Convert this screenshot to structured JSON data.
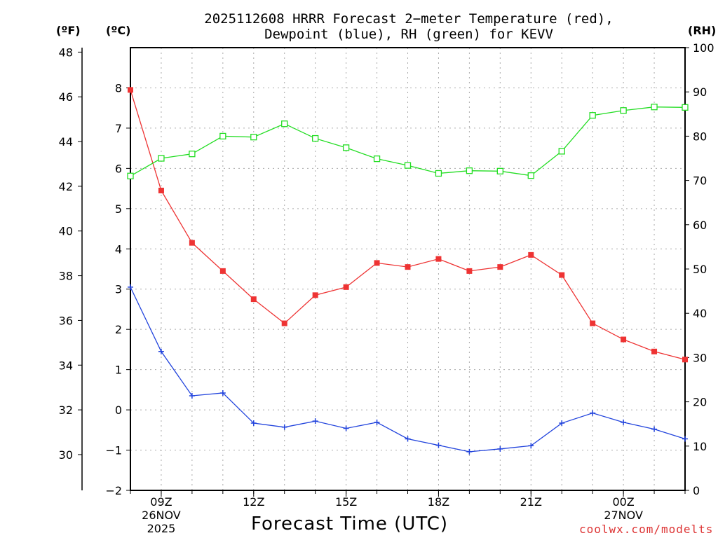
{
  "title_line1": "2025112608 HRRR Forecast 2−meter Temperature (red),",
  "title_line2": "Dewpoint (blue), RH (green) for KEVV",
  "units": {
    "f": "(ºF)",
    "c": "(ºC)",
    "rh": "(RH)"
  },
  "credit": "coolwx.com/modelts",
  "colors": {
    "temperature": "#ee3333",
    "dewpoint": "#2244dd",
    "rh": "#22dd22",
    "grid": "#aaaaaa"
  },
  "chart_data": {
    "type": "line",
    "title": "2025112608 HRRR Forecast 2-meter Temperature (red), Dewpoint (blue), RH (green) for KEVV",
    "xlabel": "Forecast Time (UTC)",
    "x_hours": [
      8,
      9,
      10,
      11,
      12,
      13,
      14,
      15,
      16,
      17,
      18,
      19,
      20,
      21,
      22,
      23,
      24,
      25,
      26
    ],
    "x_range": [
      8,
      26
    ],
    "x_ticks": [
      {
        "hour": 9,
        "label": "09Z",
        "sub1": "26NOV",
        "sub2": "2025"
      },
      {
        "hour": 12,
        "label": "12Z",
        "sub1": "",
        "sub2": ""
      },
      {
        "hour": 15,
        "label": "15Z",
        "sub1": "",
        "sub2": ""
      },
      {
        "hour": 18,
        "label": "18Z",
        "sub1": "",
        "sub2": ""
      },
      {
        "hour": 21,
        "label": "21Z",
        "sub1": "",
        "sub2": ""
      },
      {
        "hour": 24,
        "label": "00Z",
        "sub1": "27NOV",
        "sub2": ""
      }
    ],
    "y_celsius_range": [
      -2,
      9
    ],
    "y_celsius_ticks": [
      "−2",
      "−1",
      "0",
      "1",
      "2",
      "3",
      "4",
      "5",
      "6",
      "7",
      "8"
    ],
    "y_fahrenheit_ticks": [
      "30",
      "32",
      "34",
      "36",
      "38",
      "40",
      "42",
      "44",
      "46",
      "48"
    ],
    "y_rh_range": [
      0,
      100
    ],
    "y_rh_ticks": [
      "0",
      "10",
      "20",
      "30",
      "40",
      "50",
      "60",
      "70",
      "80",
      "90",
      "100"
    ],
    "series": [
      {
        "name": "Temperature",
        "units": "C",
        "color": "#ee3333",
        "marker": "filled-square",
        "values": [
          7.95,
          5.45,
          4.15,
          3.45,
          2.75,
          2.15,
          2.85,
          3.05,
          3.65,
          3.55,
          3.75,
          3.45,
          3.55,
          3.85,
          3.35,
          2.15,
          1.75,
          1.45,
          1.25
        ]
      },
      {
        "name": "Dewpoint",
        "units": "C",
        "color": "#2244dd",
        "marker": "plus",
        "values": [
          3.05,
          1.45,
          0.35,
          0.42,
          -0.33,
          -0.43,
          -0.28,
          -0.46,
          -0.31,
          -0.72,
          -0.88,
          -1.04,
          -0.97,
          -0.89,
          -0.33,
          -0.08,
          -0.31,
          -0.48,
          -0.72
        ]
      },
      {
        "name": "Relative Humidity",
        "units": "%",
        "color": "#22dd22",
        "marker": "open-square",
        "values": [
          71,
          75,
          76,
          80,
          79.8,
          82.8,
          79.5,
          77.4,
          74.9,
          73.4,
          71.6,
          72.2,
          72.1,
          71.1,
          76.6,
          84.7,
          85.8,
          86.6,
          86.5
        ]
      }
    ]
  }
}
